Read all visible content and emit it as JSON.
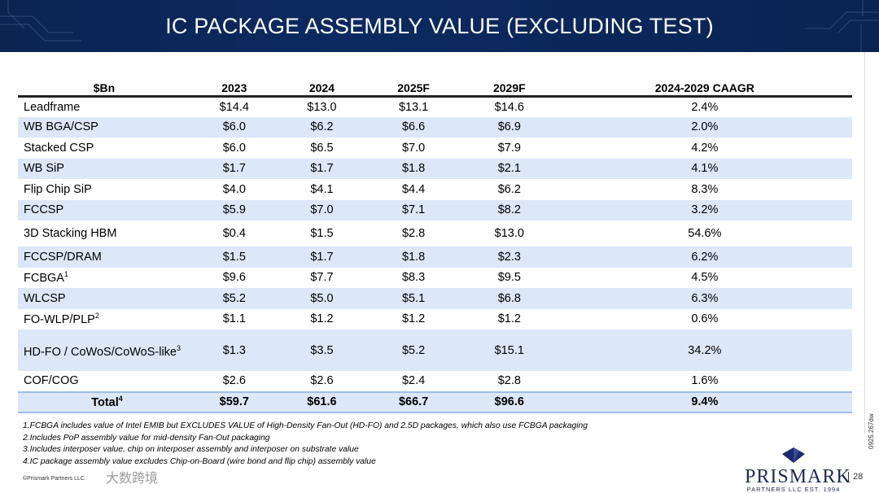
{
  "title": "IC PACKAGE ASSEMBLY VALUE (EXCLUDING TEST)",
  "table": {
    "headers": [
      "$Bn",
      "2023",
      "2024",
      "2025F",
      "2029F",
      "2024-2029 CAAGR"
    ],
    "rows": [
      {
        "label": "Leadframe",
        "sup": "",
        "values": [
          "$14.4",
          "$13.0",
          "$13.1",
          "$14.6",
          "2.4%"
        ]
      },
      {
        "label": "WB BGA/CSP",
        "sup": "",
        "values": [
          "$6.0",
          "$6.2",
          "$6.6",
          "$6.9",
          "2.0%"
        ]
      },
      {
        "label": "Stacked CSP",
        "sup": "",
        "values": [
          "$6.0",
          "$6.5",
          "$7.0",
          "$7.9",
          "4.2%"
        ]
      },
      {
        "label": "WB SiP",
        "sup": "",
        "values": [
          "$1.7",
          "$1.7",
          "$1.8",
          "$2.1",
          "4.1%"
        ]
      },
      {
        "label": "Flip Chip SiP",
        "sup": "",
        "values": [
          "$4.0",
          "$4.1",
          "$4.4",
          "$6.2",
          "8.3%"
        ]
      },
      {
        "label": "FCCSP",
        "sup": "",
        "values": [
          "$5.9",
          "$7.0",
          "$7.1",
          "$8.2",
          "3.2%"
        ]
      },
      {
        "label": "3D Stacking HBM",
        "sup": "",
        "values": [
          "$0.4",
          "$1.5",
          "$2.8",
          "$13.0",
          "54.6%"
        ]
      },
      {
        "label": "FCCSP/DRAM",
        "sup": "",
        "values": [
          "$1.5",
          "$1.7",
          "$1.8",
          "$2.3",
          "6.2%"
        ]
      },
      {
        "label": "FCBGA",
        "sup": "1",
        "values": [
          "$9.6",
          "$7.7",
          "$8.3",
          "$9.5",
          "4.5%"
        ]
      },
      {
        "label": "WLCSP",
        "sup": "",
        "values": [
          "$5.2",
          "$5.0",
          "$5.1",
          "$6.8",
          "6.3%"
        ]
      },
      {
        "label": "FO-WLP/PLP",
        "sup": "2",
        "values": [
          "$1.1",
          "$1.2",
          "$1.2",
          "$1.2",
          "0.6%"
        ]
      },
      {
        "label": "HD-FO / CoWoS/CoWoS-like",
        "sup": "3",
        "values": [
          "$1.3",
          "$3.5",
          "$5.2",
          "$15.1",
          "34.2%"
        ]
      },
      {
        "label": "COF/COG",
        "sup": "",
        "values": [
          "$2.6",
          "$2.6",
          "$2.4",
          "$2.8",
          "1.6%"
        ]
      }
    ],
    "total": {
      "label": "Total",
      "sup": "4",
      "values": [
        "$59.7",
        "$61.6",
        "$66.7",
        "$96.6",
        "9.4%"
      ]
    }
  },
  "notes": [
    "1.FCBGA includes value of Intel EMIB but EXCLUDES VALUE of High-Density Fan-Out (HD-FO) and 2.5D packages, which also use FCBGA packaging",
    "2.Includes PoP assembly value for mid-density Fan-Out packaging",
    "3.Includes interposer value, chip on interposer assembly and interposer on substrate value",
    "4.IC package assembly value excludes Chip-on-Board (wire bond and flip chip) assembly value"
  ],
  "copyright": "©Prismark Partners LLC",
  "watermark": "大数跨境",
  "doc_code": "0925.267dw",
  "logo": {
    "name": "PRISMARK",
    "sub": "PARTNERS LLC EST. 1994"
  },
  "page_number": "28"
}
